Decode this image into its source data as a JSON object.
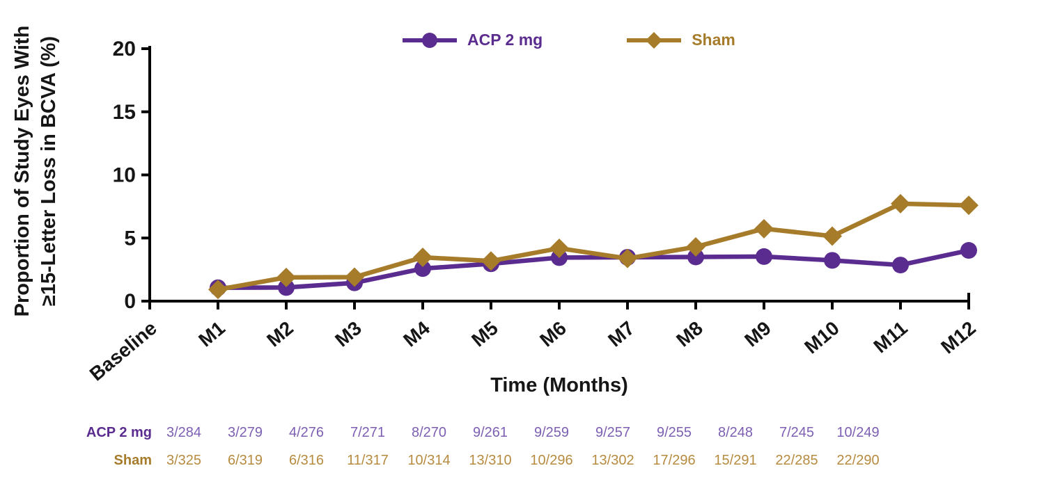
{
  "figure": {
    "y_axis_title_line1": "Proportion of Study Eyes With",
    "y_axis_title_line2": "≥15-Letter Loss in BCVA (%)",
    "x_axis_title": "Time (Months)"
  },
  "legend": [
    {
      "label": "ACP 2 mg",
      "color": "#5B2C8F",
      "marker": "circle"
    },
    {
      "label": "Sham",
      "color": "#A67C2B",
      "marker": "diamond"
    }
  ],
  "chart_data": {
    "type": "line",
    "title": "",
    "xlabel": "Time (Months)",
    "ylabel": "Proportion of Study Eyes With ≥15-Letter Loss in BCVA (%)",
    "categories": [
      "Baseline",
      "M1",
      "M2",
      "M3",
      "M4",
      "M5",
      "M6",
      "M7",
      "M8",
      "M9",
      "M10",
      "M11",
      "M12"
    ],
    "ylim": [
      0,
      20
    ],
    "yticks": [
      0,
      5,
      10,
      15,
      20
    ],
    "grid": false,
    "legend_position": "top",
    "series": [
      {
        "name": "ACP 2 mg",
        "color": "#5B2C8F",
        "marker": "circle",
        "first_category": "M1",
        "values": [
          1.06,
          1.08,
          1.45,
          2.58,
          2.96,
          3.45,
          3.47,
          3.5,
          3.53,
          3.23,
          2.86,
          4.02
        ],
        "counts": [
          "3/284",
          "3/279",
          "4/276",
          "7/271",
          "8/270",
          "9/261",
          "9/259",
          "9/257",
          "9/255",
          "8/248",
          "7/245",
          "10/249"
        ]
      },
      {
        "name": "Sham",
        "color": "#A67C2B",
        "marker": "diamond",
        "first_category": "M1",
        "values": [
          0.92,
          1.88,
          1.9,
          3.47,
          3.18,
          4.19,
          3.38,
          4.3,
          5.74,
          5.15,
          7.72,
          7.59
        ],
        "counts": [
          "3/325",
          "6/319",
          "6/316",
          "11/317",
          "10/314",
          "13/310",
          "10/296",
          "13/302",
          "17/296",
          "15/291",
          "22/285",
          "22/290"
        ]
      }
    ]
  },
  "table": {
    "rows": [
      {
        "label": "ACP 2 mg",
        "label_color": "#5B2C8F",
        "value_color": "#7C5FB3",
        "values": [
          "3/284",
          "3/279",
          "4/276",
          "7/271",
          "8/270",
          "9/261",
          "9/259",
          "9/257",
          "9/255",
          "8/248",
          "7/245",
          "10/249"
        ]
      },
      {
        "label": "Sham",
        "label_color": "#A67C2B",
        "value_color": "#B68B3F",
        "values": [
          "3/325",
          "6/319",
          "6/316",
          "11/317",
          "10/314",
          "13/310",
          "10/296",
          "13/302",
          "17/296",
          "15/291",
          "22/285",
          "22/290"
        ]
      }
    ]
  },
  "colors": {
    "axis": "#000000",
    "tick_label": "#161616",
    "acp_purple": "#5B2C8F",
    "sham_gold": "#A67C2B"
  }
}
